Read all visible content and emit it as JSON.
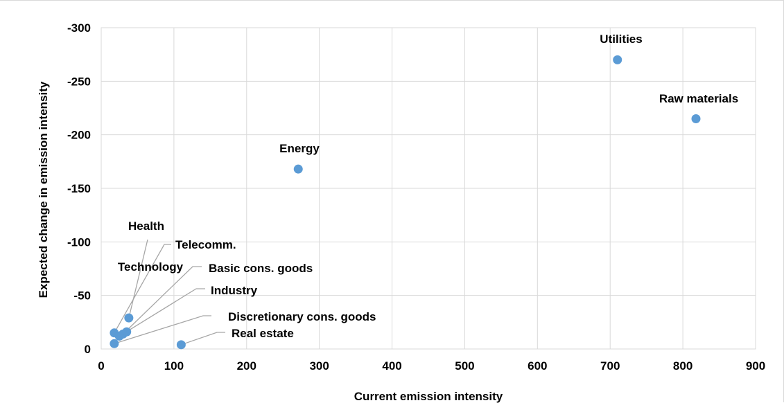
{
  "chart_data": {
    "type": "scatter",
    "xlabel": "Current emission intensity",
    "ylabel": "Expected change in emission intensity",
    "xlim": [
      0,
      900
    ],
    "ylim": [
      0,
      -300
    ],
    "xticks": [
      "0",
      "100",
      "200",
      "300",
      "400",
      "500",
      "600",
      "700",
      "800",
      "900"
    ],
    "yticks": [
      "0",
      "-50",
      "-100",
      "-150",
      "-200",
      "-250",
      "-300"
    ],
    "grid": true,
    "marker_color": "#5b9bd5",
    "leader_color": "#a6a6a6",
    "points": [
      {
        "label": "Utilities",
        "x": 710,
        "y": -270
      },
      {
        "label": "Raw materials",
        "x": 818,
        "y": -215
      },
      {
        "label": "Energy",
        "x": 271,
        "y": -168
      },
      {
        "label": "Health",
        "x": 38,
        "y": -29
      },
      {
        "label": "Telecomm.",
        "x": 18,
        "y": -15
      },
      {
        "label": "Technology",
        "x": 35,
        "y": -16
      },
      {
        "label": "Basic cons. goods",
        "x": 30,
        "y": -14
      },
      {
        "label": "Industry",
        "x": 25,
        "y": -12
      },
      {
        "label": "Discretionary cons. goods",
        "x": 18,
        "y": -5
      },
      {
        "label": "Real estate",
        "x": 110,
        "y": -4
      }
    ]
  }
}
